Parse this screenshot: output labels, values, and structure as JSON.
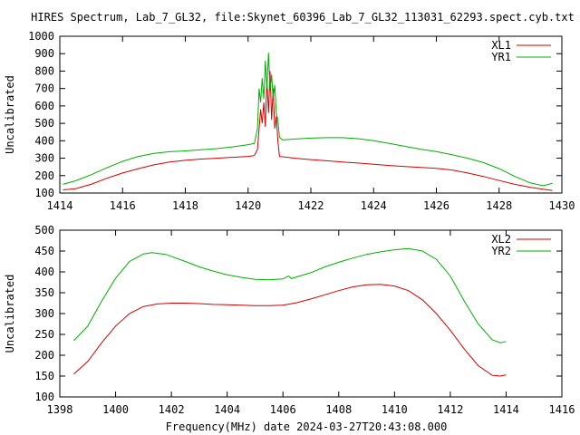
{
  "title": "HIRES Spectrum, Lab_7_GL32, file:Skynet_60396_Lab_7_GL32_113031_62293.spect.cyb.txt",
  "xlabel": "Frequency(MHz) date 2024-03-27T20:43:08.000",
  "colors": {
    "red": "#d40000",
    "green": "#00b000",
    "axis": "#000000"
  },
  "chart_data": [
    {
      "type": "line",
      "ylabel": "Uncalibrated",
      "xlim": [
        1414,
        1430
      ],
      "ylim": [
        100,
        1000
      ],
      "xticks": [
        1414,
        1416,
        1418,
        1420,
        1422,
        1424,
        1426,
        1428,
        1430
      ],
      "yticks": [
        100,
        200,
        300,
        400,
        500,
        600,
        700,
        800,
        900,
        1000
      ],
      "legend_position": "top-right",
      "series": [
        {
          "name": "XL1",
          "color": "#d40000",
          "points": [
            [
              1414.1,
              118
            ],
            [
              1414.5,
              125
            ],
            [
              1415,
              150
            ],
            [
              1415.5,
              185
            ],
            [
              1416,
              215
            ],
            [
              1416.5,
              240
            ],
            [
              1417,
              262
            ],
            [
              1417.5,
              278
            ],
            [
              1418,
              288
            ],
            [
              1418.5,
              295
            ],
            [
              1419,
              300
            ],
            [
              1419.5,
              305
            ],
            [
              1420,
              310
            ],
            [
              1420.2,
              315
            ],
            [
              1420.3,
              350
            ],
            [
              1420.4,
              580
            ],
            [
              1420.45,
              500
            ],
            [
              1420.5,
              620
            ],
            [
              1420.55,
              480
            ],
            [
              1420.6,
              750
            ],
            [
              1420.65,
              560
            ],
            [
              1420.7,
              800
            ],
            [
              1420.75,
              520
            ],
            [
              1420.8,
              700
            ],
            [
              1420.85,
              470
            ],
            [
              1420.9,
              540
            ],
            [
              1420.95,
              400
            ],
            [
              1421,
              310
            ],
            [
              1421.5,
              300
            ],
            [
              1422,
              292
            ],
            [
              1422.5,
              285
            ],
            [
              1423,
              278
            ],
            [
              1423.5,
              272
            ],
            [
              1424,
              265
            ],
            [
              1424.5,
              258
            ],
            [
              1425,
              252
            ],
            [
              1425.5,
              247
            ],
            [
              1426,
              242
            ],
            [
              1426.5,
              232
            ],
            [
              1427,
              215
            ],
            [
              1427.5,
              195
            ],
            [
              1428,
              172
            ],
            [
              1428.5,
              150
            ],
            [
              1429,
              132
            ],
            [
              1429.5,
              120
            ],
            [
              1429.7,
              115
            ]
          ]
        },
        {
          "name": "YR1",
          "color": "#00b000",
          "points": [
            [
              1414.1,
              150
            ],
            [
              1414.5,
              170
            ],
            [
              1415,
              205
            ],
            [
              1415.5,
              245
            ],
            [
              1416,
              282
            ],
            [
              1416.5,
              310
            ],
            [
              1417,
              328
            ],
            [
              1417.5,
              337
            ],
            [
              1418,
              342
            ],
            [
              1418.5,
              348
            ],
            [
              1419,
              355
            ],
            [
              1419.5,
              365
            ],
            [
              1420,
              378
            ],
            [
              1420.2,
              385
            ],
            [
              1420.3,
              470
            ],
            [
              1420.35,
              700
            ],
            [
              1420.4,
              620
            ],
            [
              1420.45,
              760
            ],
            [
              1420.5,
              640
            ],
            [
              1420.55,
              860
            ],
            [
              1420.6,
              700
            ],
            [
              1420.65,
              905
            ],
            [
              1420.7,
              690
            ],
            [
              1420.75,
              780
            ],
            [
              1420.8,
              640
            ],
            [
              1420.85,
              720
            ],
            [
              1420.9,
              560
            ],
            [
              1420.95,
              520
            ],
            [
              1421,
              420
            ],
            [
              1421.1,
              405
            ],
            [
              1421.5,
              410
            ],
            [
              1422,
              415
            ],
            [
              1422.5,
              418
            ],
            [
              1423,
              418
            ],
            [
              1423.5,
              412
            ],
            [
              1424,
              400
            ],
            [
              1424.5,
              385
            ],
            [
              1425,
              368
            ],
            [
              1425.5,
              352
            ],
            [
              1426,
              338
            ],
            [
              1426.5,
              320
            ],
            [
              1427,
              300
            ],
            [
              1427.5,
              275
            ],
            [
              1428,
              240
            ],
            [
              1428.5,
              195
            ],
            [
              1429,
              158
            ],
            [
              1429.4,
              142
            ],
            [
              1429.7,
              155
            ]
          ]
        }
      ]
    },
    {
      "type": "line",
      "ylabel": "Uncalibrated",
      "xlim": [
        1398,
        1416
      ],
      "ylim": [
        100,
        500
      ],
      "xticks": [
        1398,
        1400,
        1402,
        1404,
        1406,
        1408,
        1410,
        1412,
        1414,
        1416
      ],
      "yticks": [
        100,
        150,
        200,
        250,
        300,
        350,
        400,
        450,
        500
      ],
      "legend_position": "top-right",
      "series": [
        {
          "name": "XL2",
          "color": "#d40000",
          "points": [
            [
              1398.5,
              155
            ],
            [
              1399,
              185
            ],
            [
              1399.5,
              230
            ],
            [
              1400,
              270
            ],
            [
              1400.5,
              300
            ],
            [
              1401,
              317
            ],
            [
              1401.5,
              323
            ],
            [
              1402,
              325
            ],
            [
              1402.5,
              325
            ],
            [
              1403,
              324
            ],
            [
              1403.5,
              322
            ],
            [
              1404,
              321
            ],
            [
              1404.5,
              320
            ],
            [
              1405,
              319
            ],
            [
              1405.5,
              319
            ],
            [
              1406,
              320
            ],
            [
              1406.5,
              326
            ],
            [
              1407,
              335
            ],
            [
              1407.5,
              345
            ],
            [
              1408,
              355
            ],
            [
              1408.5,
              364
            ],
            [
              1409,
              369
            ],
            [
              1409.5,
              370
            ],
            [
              1410,
              366
            ],
            [
              1410.5,
              355
            ],
            [
              1411,
              333
            ],
            [
              1411.5,
              300
            ],
            [
              1412,
              260
            ],
            [
              1412.5,
              215
            ],
            [
              1413,
              175
            ],
            [
              1413.5,
              152
            ],
            [
              1413.8,
              150
            ],
            [
              1414,
              153
            ]
          ]
        },
        {
          "name": "YR2",
          "color": "#00b000",
          "points": [
            [
              1398.5,
              235
            ],
            [
              1399,
              270
            ],
            [
              1399.5,
              330
            ],
            [
              1400,
              385
            ],
            [
              1400.5,
              425
            ],
            [
              1401,
              443
            ],
            [
              1401.3,
              446
            ],
            [
              1401.8,
              442
            ],
            [
              1402.5,
              425
            ],
            [
              1403,
              412
            ],
            [
              1403.5,
              402
            ],
            [
              1404,
              393
            ],
            [
              1404.5,
              387
            ],
            [
              1405,
              382
            ],
            [
              1405.5,
              381
            ],
            [
              1406,
              383
            ],
            [
              1406.2,
              390
            ],
            [
              1406.3,
              384
            ],
            [
              1406.5,
              388
            ],
            [
              1407,
              398
            ],
            [
              1407.5,
              412
            ],
            [
              1408,
              423
            ],
            [
              1408.5,
              433
            ],
            [
              1409,
              442
            ],
            [
              1409.5,
              448
            ],
            [
              1410,
              453
            ],
            [
              1410.5,
              456
            ],
            [
              1411,
              450
            ],
            [
              1411.5,
              430
            ],
            [
              1412,
              390
            ],
            [
              1412.5,
              330
            ],
            [
              1413,
              275
            ],
            [
              1413.5,
              237
            ],
            [
              1413.8,
              230
            ],
            [
              1414,
              233
            ]
          ]
        }
      ]
    }
  ]
}
